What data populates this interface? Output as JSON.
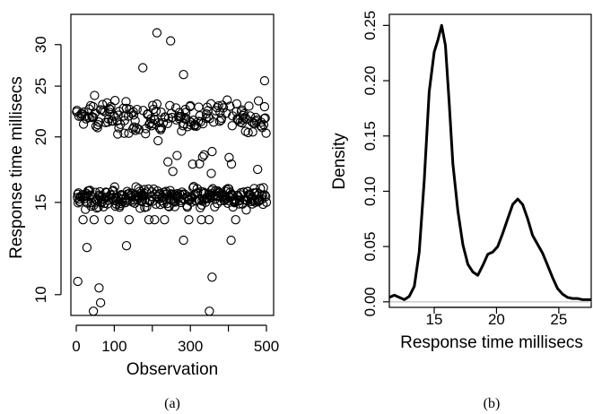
{
  "chart_data": [
    {
      "type": "scatter",
      "caption": "(a)",
      "xlabel": "Observation",
      "ylabel": "Response time millisecs",
      "xlim": [
        0,
        500
      ],
      "ylim": [
        9.2,
        34
      ],
      "log_y": true,
      "x_ticks": [
        0,
        100,
        300,
        500
      ],
      "x_minor_ticks": [
        200,
        400
      ],
      "y_ticks": [
        10,
        15,
        20,
        25,
        30
      ],
      "marker": "open-circle",
      "n_points": 500
    },
    {
      "type": "line",
      "caption": "(b)",
      "xlabel": "Response time millisecs",
      "ylabel": "Density",
      "xlim": [
        11.4,
        27.6
      ],
      "ylim": [
        -0.005,
        0.26
      ],
      "x_ticks": [
        15,
        20,
        25
      ],
      "y_ticks": [
        0.0,
        0.05,
        0.1,
        0.15,
        0.2,
        0.25
      ],
      "baseline": 0,
      "series": [
        {
          "x": [
            11.4,
            11.8,
            12.2,
            12.6,
            13.0,
            13.4,
            13.8,
            14.2,
            14.6,
            15.0,
            15.3,
            15.6,
            15.9,
            16.2,
            16.5,
            16.9,
            17.3,
            17.7,
            18.1,
            18.5,
            18.9,
            19.3,
            19.7,
            20.1,
            20.5,
            20.9,
            21.3,
            21.7,
            22.1,
            22.5,
            22.9,
            23.3,
            23.7,
            24.1,
            24.5,
            24.9,
            25.3,
            25.7,
            26.1,
            26.5,
            26.9,
            27.3,
            27.6
          ],
          "y": [
            0.004,
            0.006,
            0.004,
            0.002,
            0.005,
            0.014,
            0.045,
            0.11,
            0.19,
            0.226,
            0.237,
            0.25,
            0.232,
            0.18,
            0.125,
            0.082,
            0.052,
            0.034,
            0.027,
            0.024,
            0.033,
            0.043,
            0.045,
            0.05,
            0.062,
            0.075,
            0.088,
            0.093,
            0.088,
            0.075,
            0.06,
            0.052,
            0.044,
            0.033,
            0.022,
            0.012,
            0.007,
            0.004,
            0.003,
            0.003,
            0.002,
            0.002,
            0.002
          ]
        }
      ]
    }
  ]
}
